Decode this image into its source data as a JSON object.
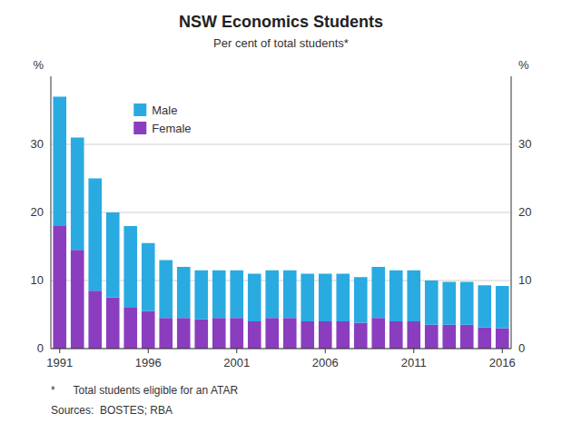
{
  "chart_data": {
    "type": "bar",
    "stacked": true,
    "title": "NSW Economics Students",
    "subtitle": "Per cent of total students*",
    "annotations": [
      "*      Total students eligible for an ATAR",
      "Sources:  BOSTES; RBA"
    ],
    "ylabel": "%",
    "y2label": "%",
    "categories": [
      "1991",
      null,
      null,
      null,
      null,
      "1996",
      null,
      null,
      null,
      null,
      "2001",
      null,
      null,
      null,
      null,
      "2006",
      null,
      null,
      null,
      null,
      "2011",
      null,
      null,
      null,
      null,
      "2016"
    ],
    "series": [
      {
        "name": "Female",
        "color": "#8B3DBF",
        "values": [
          18.0,
          14.5,
          8.5,
          7.5,
          6.0,
          5.5,
          4.5,
          4.5,
          4.3,
          4.5,
          4.5,
          4.0,
          4.5,
          4.5,
          4.0,
          4.0,
          4.0,
          3.8,
          4.5,
          4.0,
          4.0,
          3.5,
          3.5,
          3.5,
          3.1,
          3.0
        ]
      },
      {
        "name": "Male",
        "color": "#29ABE2",
        "values": [
          19.0,
          16.5,
          16.5,
          12.5,
          12.0,
          10.0,
          8.5,
          7.5,
          7.2,
          7.0,
          7.0,
          7.0,
          7.0,
          7.0,
          7.0,
          7.0,
          7.0,
          6.7,
          7.5,
          7.5,
          7.5,
          6.5,
          6.3,
          6.3,
          6.2,
          6.2
        ]
      }
    ],
    "ylim": [
      0,
      40
    ],
    "yticks": [
      0,
      10,
      20,
      30
    ],
    "y2lim": [
      0,
      40
    ],
    "y2ticks": [
      0,
      10,
      20,
      30
    ],
    "grid": true,
    "legend": "top-left"
  }
}
